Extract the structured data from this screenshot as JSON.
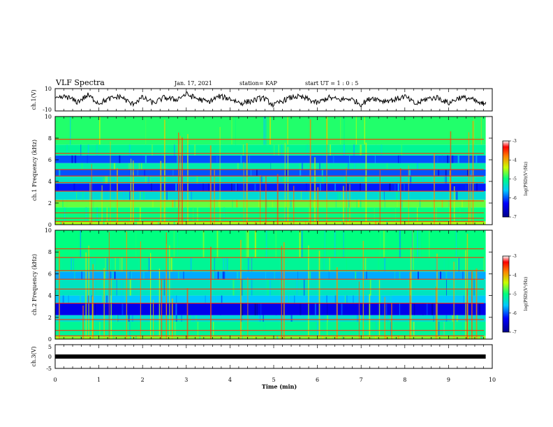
{
  "header": {
    "title": "VLF Spectra",
    "date": "Jan. 17, 2021",
    "station": "station= KAP",
    "start": "start UT =  1 : 0  : 5"
  },
  "chart_data": [
    {
      "type": "line",
      "panel": "ch1-waveform",
      "ylabel": "ch.1(V)",
      "ylim": [
        -10,
        10
      ],
      "ytick_labels": [
        "10",
        "-10"
      ],
      "xlim": [
        0,
        10
      ],
      "series": [
        {
          "color": "#000000",
          "x": [
            0,
            0.25,
            0.5,
            0.75,
            1,
            1.25,
            1.5,
            1.75,
            2,
            2.25,
            2.5,
            2.75,
            3,
            3.25,
            3.5,
            3.75,
            4,
            4.25,
            4.5,
            4.75,
            5,
            5.25,
            5.5,
            5.75,
            6,
            6.25,
            6.5,
            6.75,
            7,
            7.25,
            7.5,
            7.75,
            8,
            8.25,
            8.5,
            8.75,
            9,
            9.25,
            9.5,
            9.75,
            9.85
          ],
          "values": [
            0,
            3,
            -2,
            4,
            -3,
            1,
            3,
            -4,
            2,
            -3,
            2,
            0,
            5,
            1,
            -2,
            3,
            1,
            -3,
            -1,
            2,
            -5,
            0,
            3,
            1,
            -3,
            2,
            0,
            1,
            -4,
            2,
            -1,
            0,
            3,
            -4,
            1,
            2,
            -3,
            2,
            1,
            -4,
            -2
          ]
        }
      ]
    },
    {
      "type": "heatmap",
      "panel": "ch1-spectrogram",
      "ylabel": "ch.1 Frequency (kHz)",
      "xlim": [
        0,
        10
      ],
      "ylim": [
        0,
        10
      ],
      "ytick_labels": [
        "0",
        "2",
        "4",
        "6",
        "8",
        "10"
      ],
      "colorbar": {
        "label": "log(PSD)(V²/Hz)",
        "range": [
          -7,
          -3
        ],
        "tick_labels": [
          "-3",
          "-4",
          "-5",
          "-6",
          "-7"
        ]
      },
      "band_levels_note": "",
      "bands": [
        {
          "f": [
            0,
            0.3
          ],
          "level": -4.5
        },
        {
          "f": [
            0.3,
            1.6
          ],
          "level": -5.0
        },
        {
          "f": [
            1.6,
            2.3
          ],
          "level": -4.7
        },
        {
          "f": [
            2.3,
            3.1
          ],
          "level": -5.4
        },
        {
          "f": [
            3.1,
            3.8
          ],
          "level": -6.2
        },
        {
          "f": [
            3.8,
            4.5
          ],
          "level": -5.3
        },
        {
          "f": [
            4.5,
            5.1
          ],
          "level": -6.0
        },
        {
          "f": [
            5.1,
            5.7
          ],
          "level": -5.2
        },
        {
          "f": [
            5.7,
            6.4
          ],
          "level": -6.0
        },
        {
          "f": [
            6.4,
            7.4
          ],
          "level": -5.1
        },
        {
          "f": [
            7.4,
            10
          ],
          "level": -4.9
        }
      ],
      "lines_khz": [
        0.3,
        0.6,
        1.1,
        2.2,
        3.1,
        3.9,
        4.5,
        5.1,
        6.6,
        7.9
      ]
    },
    {
      "type": "heatmap",
      "panel": "ch2-spectrogram",
      "ylabel": "ch.2 Frequency (kHz)",
      "xlim": [
        0,
        10
      ],
      "ylim": [
        0,
        10
      ],
      "ytick_labels": [
        "0",
        "2",
        "4",
        "6",
        "8",
        "10"
      ],
      "colorbar": {
        "label": "log(PSD)(V²/Hz)",
        "range": [
          -7,
          -3
        ],
        "tick_labels": [
          "-3",
          "-4",
          "-5",
          "-6",
          "-7"
        ]
      },
      "bands": [
        {
          "f": [
            0,
            0.3
          ],
          "level": -4.6
        },
        {
          "f": [
            0.3,
            1.6
          ],
          "level": -5.1
        },
        {
          "f": [
            1.6,
            2.2
          ],
          "level": -5.4
        },
        {
          "f": [
            2.2,
            3.3
          ],
          "level": -6.4
        },
        {
          "f": [
            3.3,
            4.0
          ],
          "level": -5.6
        },
        {
          "f": [
            4.0,
            5.5
          ],
          "level": -5.3
        },
        {
          "f": [
            5.5,
            6.2
          ],
          "level": -5.7
        },
        {
          "f": [
            6.2,
            7.5
          ],
          "level": -5.1
        },
        {
          "f": [
            7.5,
            10
          ],
          "level": -5.0
        }
      ],
      "lines_khz": [
        0.3,
        0.8,
        1.8,
        3.3,
        4.6,
        5.5,
        6.3,
        7.5,
        8.3
      ]
    },
    {
      "type": "line",
      "panel": "ch3-waveform",
      "ylabel": "ch.3(V)",
      "ylim": [
        -5,
        5
      ],
      "ytick_labels": [
        "5",
        "0",
        "-5"
      ],
      "xlim": [
        0,
        10
      ],
      "series": [
        {
          "color": "#000000",
          "x": [
            0,
            9.85
          ],
          "values": [
            0,
            0
          ]
        }
      ]
    }
  ],
  "xaxis": {
    "label": "Time (min)",
    "tick_labels": [
      "0",
      "1",
      "2",
      "3",
      "4",
      "5",
      "6",
      "7",
      "8",
      "9",
      "10"
    ]
  }
}
